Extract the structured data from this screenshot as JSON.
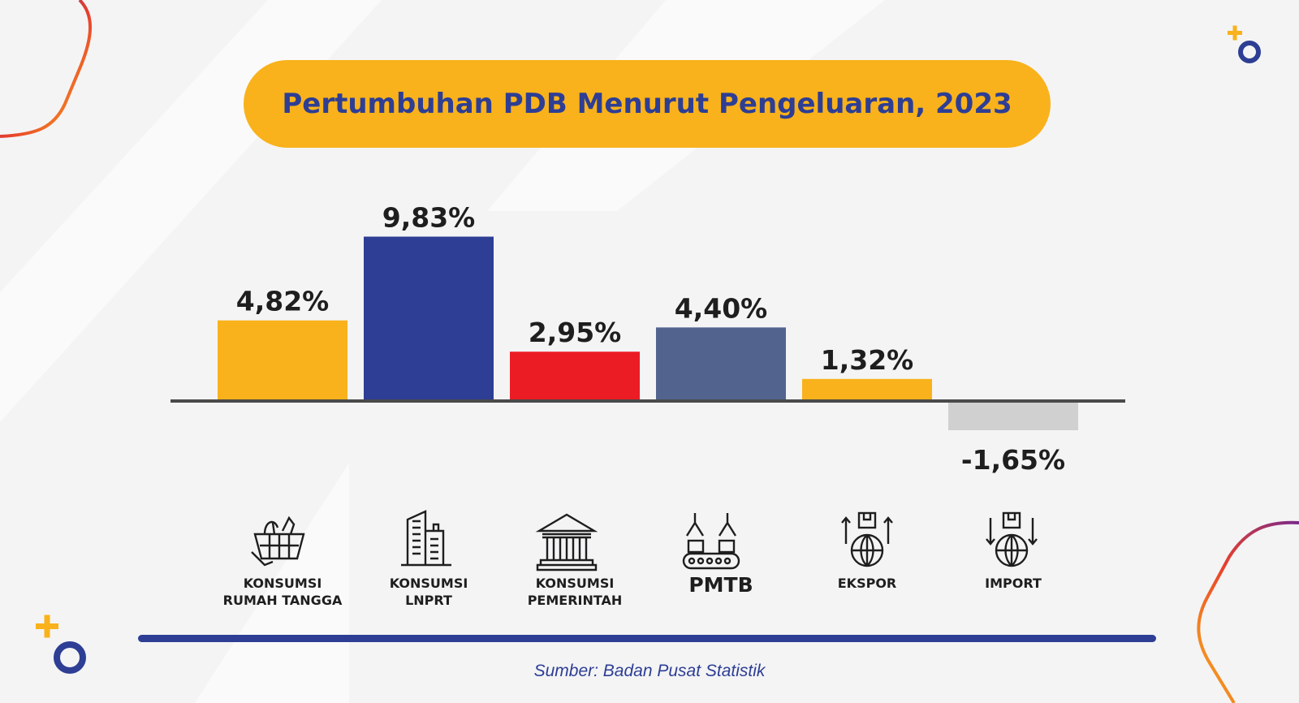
{
  "colors": {
    "background": "#f4f4f5",
    "accent_yellow": "#f9b21b",
    "accent_navy": "#2d3e94",
    "accent_red": "#ec1c24",
    "accent_slate": "#52648e",
    "negative_gray": "#d0d0d0",
    "axis": "#4a4a4a",
    "label_text": "#1e1e1e"
  },
  "header": {
    "title": "Pertumbuhan PDB Menurut Pengeluaran, 2023"
  },
  "chart_data": {
    "type": "bar",
    "title": "Pertumbuhan PDB Menurut Pengeluaran, 2023",
    "categories": [
      "KONSUMSI RUMAH TANGGA",
      "KONSUMSI LNPRT",
      "KONSUMSI PEMERINTAH",
      "PMTB",
      "EKSPOR",
      "IMPORT"
    ],
    "values": [
      4.82,
      9.83,
      2.95,
      4.4,
      1.32,
      -1.65
    ],
    "value_labels": [
      "4,82%",
      "9,83%",
      "2,95%",
      "4,40%",
      "1,32%",
      "-1,65%"
    ],
    "bar_colors": [
      "#f9b21b",
      "#2d3e94",
      "#ec1c24",
      "#52648e",
      "#f9b21b",
      "#d0d0d0"
    ],
    "ylim": [
      -1.65,
      9.83
    ],
    "xlabel": "",
    "ylabel": "",
    "grid": false,
    "legend": "none"
  },
  "categories": [
    {
      "lines": [
        "KONSUMSI",
        "RUMAH TANGGA"
      ],
      "icon": "shopping-basket-icon"
    },
    {
      "lines": [
        "KONSUMSI",
        "LNPRT"
      ],
      "icon": "office-building-icon"
    },
    {
      "lines": [
        "KONSUMSI",
        "PEMERINTAH"
      ],
      "icon": "government-building-icon"
    },
    {
      "lines": [
        "PMTB"
      ],
      "icon": "factory-robot-icon"
    },
    {
      "lines": [
        "EKSPOR"
      ],
      "icon": "globe-export-icon"
    },
    {
      "lines": [
        "IMPORT"
      ],
      "icon": "globe-import-icon"
    }
  ],
  "footer": {
    "source": "Sumber: Badan Pusat Statistik"
  }
}
